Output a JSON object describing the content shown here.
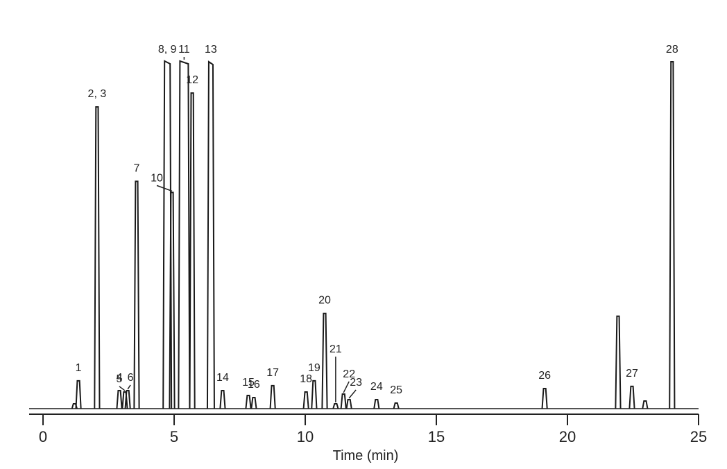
{
  "chart_data": {
    "type": "chromatogram",
    "xlabel": "Time (min)",
    "xlim": [
      -0.53,
      25
    ],
    "xticks": [
      0,
      5,
      10,
      15,
      20,
      25
    ],
    "ylim": [
      0,
      100
    ],
    "color": "#1a1a1a",
    "peaks": {
      "x": [
        1.2,
        1.35,
        2.06,
        2.91,
        3.12,
        3.23,
        3.57,
        4.74,
        4.92,
        5.38,
        5.69,
        6.4,
        6.85,
        7.83,
        8.04,
        8.76,
        10.03,
        10.34,
        10.74,
        11.16,
        11.46,
        11.67,
        12.72,
        13.47,
        19.13,
        21.93,
        22.46,
        22.96,
        23.99
      ],
      "values": [
        1.4,
        8,
        86.8,
        5.2,
        4.8,
        5.2,
        65.4,
        100,
        62.2,
        100,
        90.8,
        99.8,
        5.2,
        3.8,
        3.2,
        6.6,
        4.8,
        8,
        27.4,
        1.4,
        4.2,
        2.6,
        2.6,
        1.6,
        5.8,
        26.6,
        6.4,
        2.2,
        99.8
      ],
      "labels": [
        null,
        "1",
        "2, 3",
        "4",
        "5",
        "6",
        "7",
        "8, 9",
        "10",
        "11",
        "12",
        "13",
        "14",
        "15",
        "16",
        "17",
        "18",
        "19",
        "20",
        "21",
        "22",
        "23",
        "24",
        "25",
        "26",
        null,
        "27",
        null,
        "28"
      ]
    }
  }
}
